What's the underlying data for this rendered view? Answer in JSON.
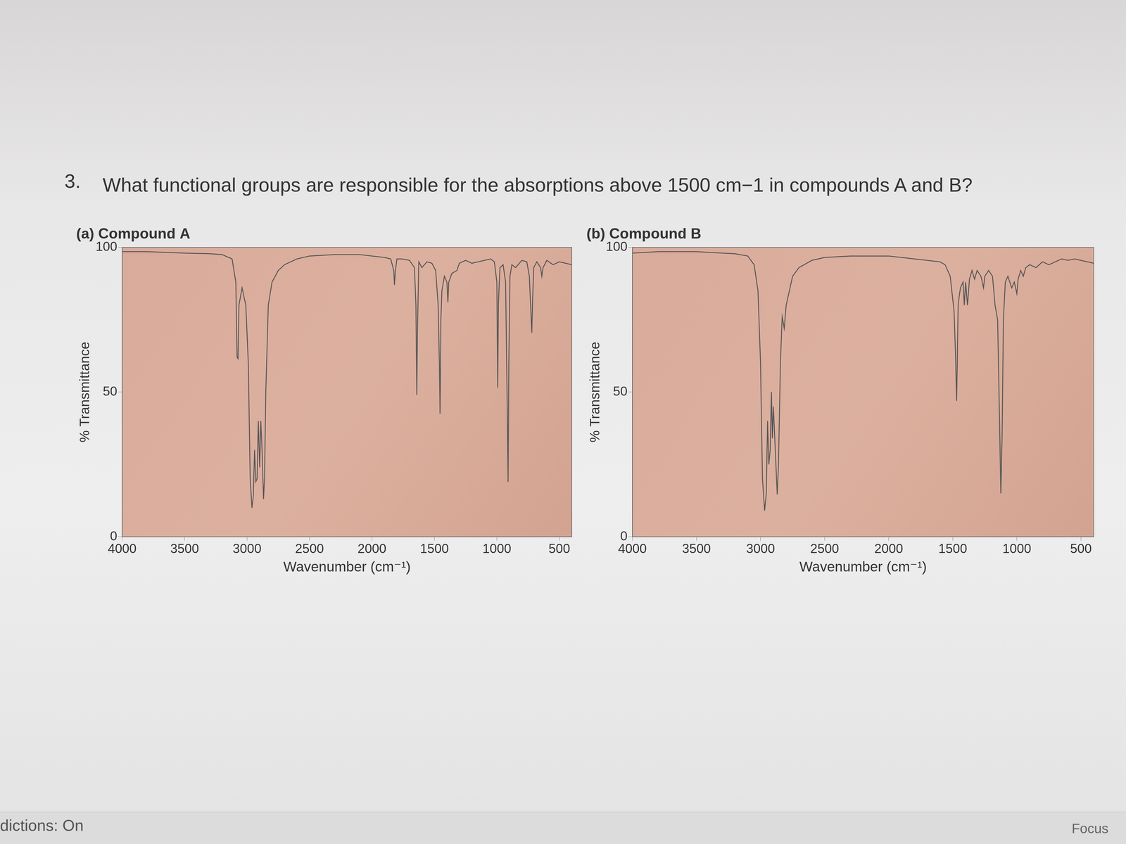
{
  "question": {
    "number": "3.",
    "text": "What functional groups are responsible for the absorptions above 1500 cm−1 in compounds A and B?"
  },
  "status_bar": [
    "dictions: On",
    "Focus"
  ],
  "chart_data": [
    {
      "type": "line",
      "title": "(a) Compound A",
      "x_label": "Wavenumber (cm⁻¹)",
      "y_label": "% Transmittance",
      "color": "#555555",
      "marker": "none",
      "grid": false,
      "xlim": [
        4000,
        400
      ],
      "xticks": [
        4000,
        3500,
        3000,
        2500,
        2000,
        1500,
        1000,
        500
      ],
      "ylim": [
        0,
        100
      ],
      "yticks": [
        0,
        50,
        100
      ],
      "x": [
        4000,
        3800,
        3500,
        3300,
        3200,
        3120,
        3090,
        3080,
        3072,
        3065,
        3040,
        3010,
        2990,
        2975,
        2961,
        2950,
        2940,
        2930,
        2920,
        2910,
        2899,
        2890,
        2880,
        2868,
        2860,
        2850,
        2830,
        2800,
        2750,
        2700,
        2600,
        2500,
        2300,
        2100,
        2000,
        1900,
        1850,
        1825,
        1820,
        1812,
        1800,
        1760,
        1700,
        1660,
        1648,
        1641,
        1636,
        1625,
        1600,
        1560,
        1520,
        1490,
        1470,
        1460,
        1455,
        1448,
        1440,
        1420,
        1400,
        1392,
        1385,
        1360,
        1320,
        1300,
        1250,
        1200,
        1150,
        1100,
        1050,
        1020,
        1000,
        993,
        988,
        975,
        950,
        930,
        917,
        910,
        904,
        895,
        880,
        850,
        800,
        760,
        740,
        720,
        715,
        705,
        680,
        650,
        640,
        630,
        600,
        550,
        500,
        450,
        400
      ],
      "values": [
        98.5,
        98.5,
        98,
        97.8,
        97.5,
        96,
        88,
        62,
        61.5,
        80,
        86,
        80,
        60,
        20,
        10,
        14,
        30,
        19,
        20,
        40,
        24,
        40,
        30,
        13,
        20,
        50,
        80,
        88,
        92,
        94,
        96,
        97,
        97.5,
        97.5,
        97,
        96.5,
        96,
        92,
        87,
        92,
        96,
        96,
        95.5,
        93,
        80,
        49,
        70,
        95,
        93,
        95,
        94.5,
        92,
        80,
        60,
        42.5,
        75,
        85,
        90,
        88,
        81,
        88,
        91,
        92,
        94.5,
        95.5,
        94.5,
        95,
        95.5,
        96,
        95,
        88,
        51.5,
        80,
        93,
        94,
        88,
        45,
        19,
        60,
        90,
        94,
        93,
        95.5,
        95,
        90,
        70.5,
        80,
        93,
        95,
        93,
        90,
        93,
        95.5,
        94,
        95,
        94.5,
        94
      ]
    },
    {
      "type": "line",
      "title": "(b) Compound B",
      "x_label": "Wavenumber (cm⁻¹)",
      "y_label": "% Transmittance",
      "color": "#555555",
      "marker": "none",
      "grid": false,
      "xlim": [
        4000,
        400
      ],
      "xticks": [
        4000,
        3500,
        3000,
        2500,
        2000,
        1500,
        1000,
        500
      ],
      "ylim": [
        0,
        100
      ],
      "yticks": [
        0,
        50,
        100
      ],
      "x": [
        4000,
        3800,
        3500,
        3300,
        3200,
        3100,
        3050,
        3020,
        3000,
        2985,
        2968,
        2955,
        2945,
        2935,
        2925,
        2915,
        2908,
        2900,
        2885,
        2870,
        2860,
        2845,
        2831,
        2815,
        2800,
        2750,
        2700,
        2600,
        2500,
        2300,
        2100,
        2000,
        1900,
        1800,
        1700,
        1600,
        1560,
        1520,
        1500,
        1490,
        1478,
        1470,
        1465,
        1458,
        1450,
        1440,
        1420,
        1410,
        1400,
        1385,
        1378,
        1370,
        1350,
        1330,
        1310,
        1280,
        1260,
        1250,
        1220,
        1190,
        1170,
        1150,
        1135,
        1125,
        1115,
        1105,
        1090,
        1070,
        1040,
        1020,
        1000,
        990,
        970,
        950,
        930,
        900,
        850,
        800,
        750,
        700,
        650,
        600,
        550,
        500,
        450,
        400
      ],
      "values": [
        98,
        98.5,
        98.5,
        98,
        97.8,
        97,
        94,
        85,
        60,
        20,
        9,
        15,
        40,
        25,
        30,
        50,
        34,
        45,
        30,
        14.6,
        25,
        60,
        76,
        72,
        80,
        90,
        93,
        95.5,
        96.5,
        97,
        97,
        97,
        96.5,
        96,
        95.5,
        95,
        94,
        90,
        82,
        78,
        62,
        47,
        60,
        80,
        83,
        86,
        88,
        80,
        88,
        80,
        84,
        89,
        92,
        89,
        92,
        90,
        86,
        90,
        92,
        90,
        80,
        75,
        40,
        15,
        35,
        75,
        88,
        90,
        86,
        88,
        84,
        89,
        92,
        90,
        93,
        94,
        93,
        95,
        94,
        95,
        96,
        95.5,
        96,
        95.5,
        95,
        94.5
      ]
    }
  ]
}
